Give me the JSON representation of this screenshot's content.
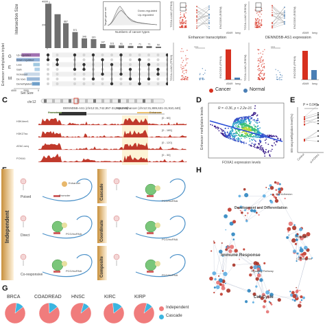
{
  "panel_letters": [
    "C",
    "D",
    "E",
    "F",
    "G",
    "H"
  ],
  "upset": {
    "y_title": "Intersection Size",
    "y_ticks": [
      "4000",
      "2000",
      "0"
    ],
    "bar_values": [
      887,
      571,
      346,
      320,
      147,
      101,
      91,
      77,
      71,
      71,
      50
    ],
    "set_labels": [
      "Up-regulated",
      "Down-regulated",
      "Loss",
      "Gain",
      "Increased",
      "De novo",
      "Demethylated"
    ],
    "set_size_title": "Set Size",
    "set_size_ticks": [
      "4000",
      "2000",
      "0"
    ],
    "side_title": "Enhancer methylation triplet",
    "side_letters": [
      "G",
      "E",
      "M"
    ],
    "inset_ylabel": "Target gene set",
    "inset_xlabel": "Numbers of cancer types",
    "inset_legend": [
      "Down-regulated",
      "Up-regulated"
    ]
  },
  "top_right": {
    "row1_left_ylabel": "TCGA-LUAD (FPKM)",
    "row1_left_y2": "ENCODE (RSEM)",
    "row1_right_ylabel": "TCGA-LUAD (RSEM)",
    "row1_right_y2": "ENCODE (RSEM)",
    "row1_xlabels": [
      "A549",
      "lung"
    ],
    "row2_left_title": "Enhancer transcription",
    "row2_right_title": "DENND5B-AS1 expression",
    "row2_left_ylabel": "TCGA-LUAD (FPKM)",
    "row2_left_y2": "ENCODE (FPKM)",
    "row2_right_ylabel": "TCGA-LUAD (RSEM)",
    "row2_right_y2": "ENCODE (FPKM)",
    "row2_xlabels": [
      "A549",
      "lung"
    ],
    "sig": "****",
    "legend": [
      {
        "label": "Cancer",
        "color": "#d7301f"
      },
      {
        "label": "Normal",
        "color": "#4a7fb5"
      }
    ]
  },
  "track": {
    "chr": "chr12",
    "gene_label": "DENND5B-AS1 (chr12:31,742,857-31,768,285)",
    "super_enhancer_label": "Super enhancer (chr12:31,889,631-31,910,440)",
    "promoter": "Promoter",
    "enhancer": "Enhancer",
    "tracks": [
      "H3K4me1",
      "H3K27ac",
      "ATAC-seq",
      "FOXA1"
    ],
    "ranges": [
      "[0 - 60]",
      "[0 - 185]",
      "[0 - 120]",
      "[0 - 30]"
    ]
  },
  "panel_d": {
    "stats": "R = -0.36, p < 2.2e-16",
    "ylabel": "Enhancer methylation levels",
    "xlabel": "FOXA1 expression levels"
  },
  "panel_e": {
    "stats": "P = 0.049",
    "ylabel": "BS-seq methylation level(%)",
    "xlabels": [
      "Control",
      "si-FOXA1"
    ]
  },
  "panel_f": {
    "group1": "Independent",
    "group2_a": "Cascade",
    "group2_b": "Coordinate",
    "group2_c": "Composite",
    "modes": [
      "Poised",
      "Direct",
      "Co-responsive"
    ],
    "promoter": "Promoter",
    "enhancer": "Enhancer",
    "rna": "PCG/lncRNA"
  },
  "panel_g": {
    "cancers": [
      "BRCA",
      "COADREAD",
      "HNSC",
      "KIRC",
      "KIRP"
    ],
    "legend": [
      {
        "label": "Independent",
        "color": "#f07c7c"
      },
      {
        "label": "Cascade",
        "color": "#3bb5e0"
      }
    ],
    "chart_data": {
      "type": "pie",
      "series": [
        {
          "name": "Independent",
          "values": [
            0.88,
            0.85,
            0.9,
            0.84,
            0.9
          ]
        },
        {
          "name": "Cascade",
          "values": [
            0.12,
            0.15,
            0.1,
            0.16,
            0.1
          ]
        }
      ],
      "categories": [
        "BRCA",
        "COADREAD",
        "HNSC",
        "KIRC",
        "KIRP"
      ]
    }
  },
  "panel_h": {
    "clusters": [
      "Development and Differentiation",
      "Immune Response",
      "Cell Cycle",
      "Cell Death",
      "Signaling Pathway",
      "Cytoskeleton",
      "Cell Adhesion"
    ]
  }
}
